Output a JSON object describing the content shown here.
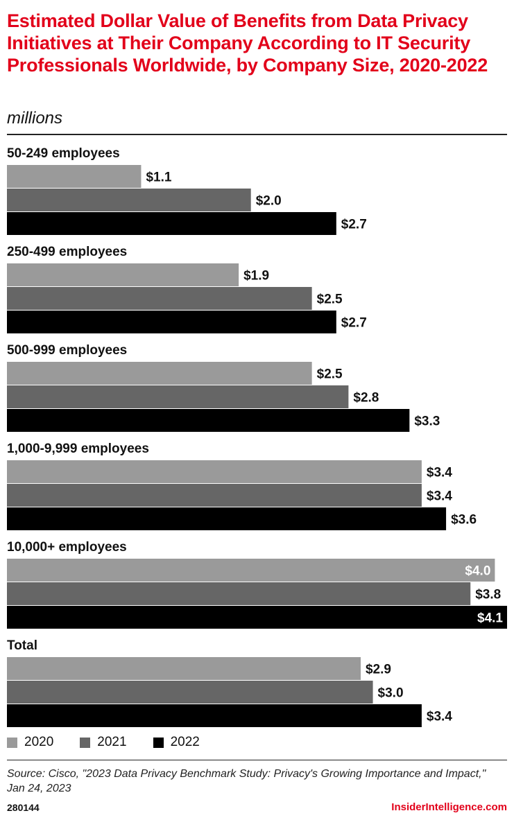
{
  "header": {
    "title": "Estimated Dollar Value of Benefits from Data Privacy Initiatives at Their Company According to IT Security Professionals Worldwide, by Company Size, 2020-2022",
    "subtitle": "millions"
  },
  "colors": {
    "title": "#e2001a",
    "series_2020": "#9a9a9a",
    "series_2021": "#666666",
    "series_2022": "#000000",
    "brand": "#e2001a"
  },
  "chart_data": {
    "type": "bar",
    "orientation": "horizontal",
    "categories": [
      "50-249 employees",
      "250-499 employees",
      "500-999 employees",
      "1,000-9,999 employees",
      "10,000+ employees",
      "Total"
    ],
    "series": [
      {
        "name": "2020",
        "values": [
          1.1,
          1.9,
          2.5,
          3.4,
          4.0,
          2.9
        ],
        "labels": [
          "$1.1",
          "$1.9",
          "$2.5",
          "$3.4",
          "$4.0",
          "$2.9"
        ]
      },
      {
        "name": "2021",
        "values": [
          2.0,
          2.5,
          2.8,
          3.4,
          3.8,
          3.0
        ],
        "labels": [
          "$2.0",
          "$2.5",
          "$2.8",
          "$3.4",
          "$3.8",
          "$3.0"
        ]
      },
      {
        "name": "2022",
        "values": [
          2.7,
          2.7,
          3.3,
          3.6,
          4.1,
          3.4
        ],
        "labels": [
          "$2.7",
          "$2.7",
          "$3.3",
          "$3.6",
          "$4.1",
          "$3.4"
        ]
      }
    ],
    "unit": "millions",
    "xlim": [
      0,
      4.1
    ],
    "grid": false,
    "legend_position": "bottom-left"
  },
  "legend": {
    "items": [
      "2020",
      "2021",
      "2022"
    ]
  },
  "footer": {
    "source": "Source: Cisco, \"2023 Data Privacy Benchmark Study: Privacy's Growing Importance and Impact,\" Jan 24, 2023",
    "chart_id": "280144",
    "brand": "InsiderIntelligence.com"
  }
}
